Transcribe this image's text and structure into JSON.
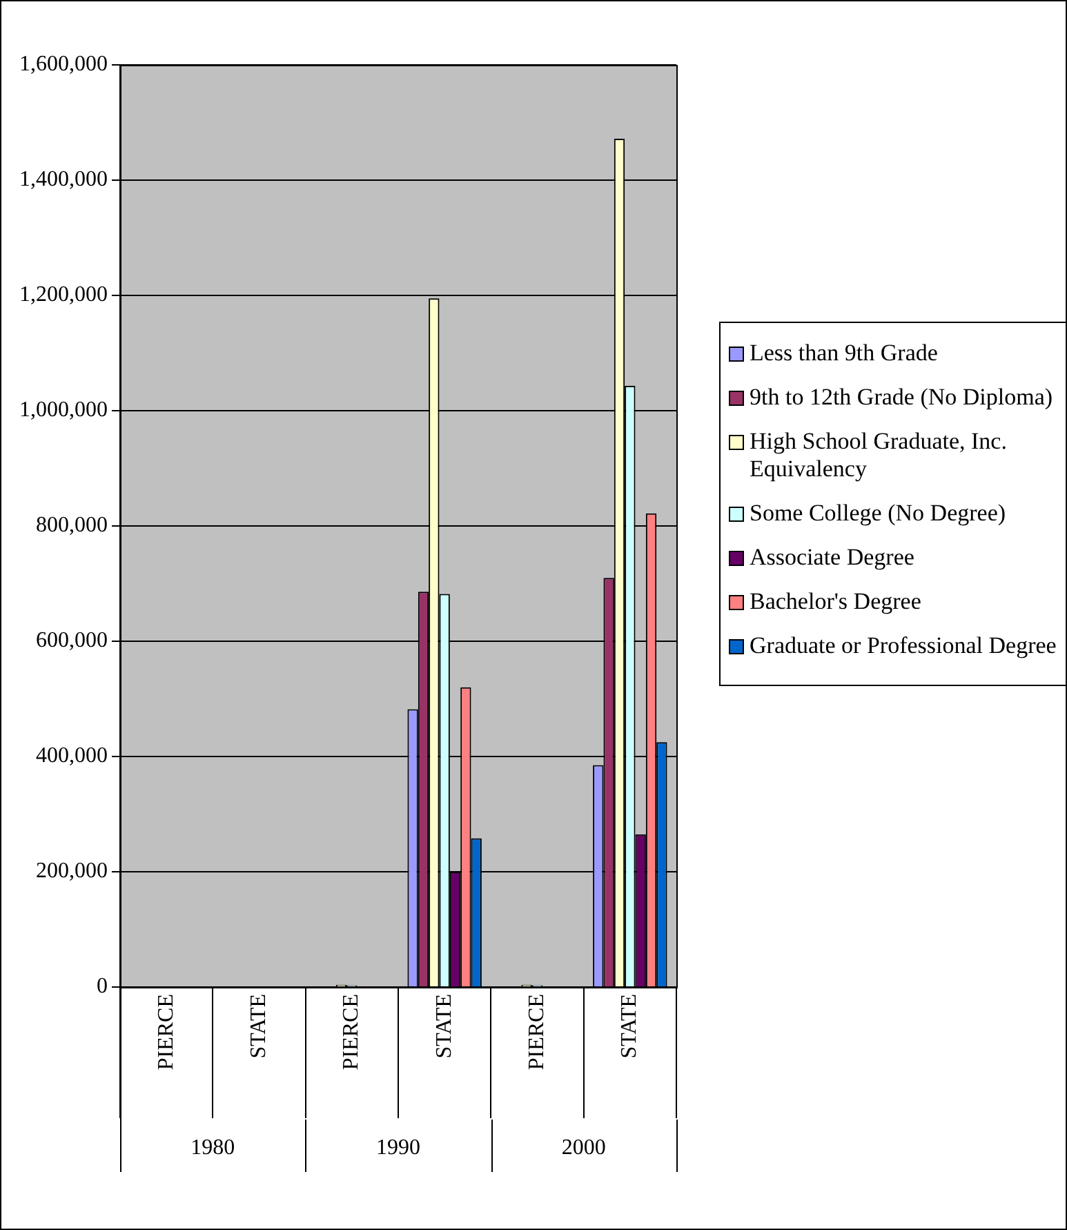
{
  "chart_data": {
    "type": "bar",
    "categories": [
      "PIERCE",
      "STATE",
      "PIERCE",
      "STATE",
      "PIERCE",
      "STATE"
    ],
    "annotations": [
      "1980",
      "1990",
      "2000"
    ],
    "series": [
      {
        "name": "Less than 9th Grade",
        "color": "#9999ff",
        "values": [
          null,
          null,
          null,
          482000,
          null,
          385000
        ]
      },
      {
        "name": "9th to 12th Grade (No Diploma)",
        "color": "#993366",
        "values": [
          null,
          null,
          null,
          686000,
          null,
          710000
        ]
      },
      {
        "name": "High School Graduate, Inc. Equivalency",
        "color": "#ffffcc",
        "values": [
          null,
          null,
          4000,
          1195000,
          4000,
          1472000
        ]
      },
      {
        "name": "Some College (No Degree)",
        "color": "#ccffff",
        "values": [
          null,
          null,
          3000,
          682000,
          3000,
          1043000
        ]
      },
      {
        "name": "Associate Degree",
        "color": "#660066",
        "values": [
          null,
          null,
          null,
          200000,
          null,
          265000
        ]
      },
      {
        "name": "Bachelor's Degree",
        "color": "#ff8080",
        "values": [
          null,
          null,
          null,
          520000,
          null,
          822000
        ]
      },
      {
        "name": "Graduate or Professional Degree",
        "color": "#0066cc",
        "values": [
          null,
          null,
          null,
          258000,
          null,
          425000
        ]
      }
    ],
    "ylim": [
      0,
      1600000
    ],
    "yticks": [
      0,
      {
        "value": 200000,
        "label": "200,000"
      },
      {
        "value": 400000,
        "label": "400,000"
      },
      {
        "value": 600000,
        "label": "600,000"
      },
      {
        "value": 800000,
        "label": "800,000"
      },
      {
        "value": 1000000,
        "label": "1,000,000"
      },
      {
        "value": 1200000,
        "label": "1,200,000"
      },
      {
        "value": 1400000,
        "label": "1,400,000"
      },
      {
        "value": 1600000,
        "label": "1,600,000"
      }
    ],
    "grid": "y",
    "legend": "right"
  }
}
